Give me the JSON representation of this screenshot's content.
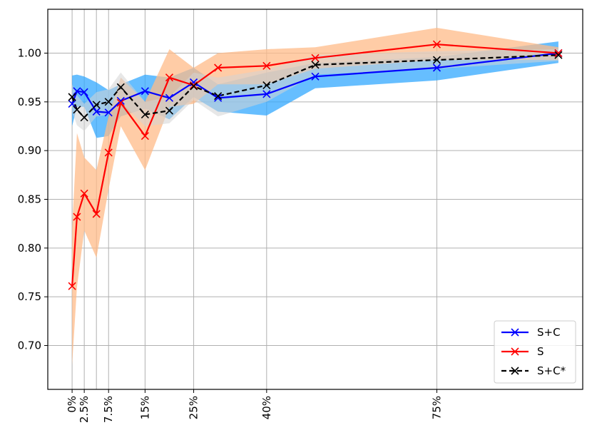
{
  "chart_data": {
    "type": "line",
    "title": "",
    "xlabel": "",
    "ylabel": "",
    "grid": true,
    "legend_position": "bottom-right",
    "xlim": [
      -5,
      105
    ],
    "ylim": [
      0.655,
      1.045
    ],
    "x_ticks": [
      {
        "value": 0,
        "label": "0%"
      },
      {
        "value": 2.5,
        "label": "2.5%"
      },
      {
        "value": 7.5,
        "label": "7.5%"
      },
      {
        "value": 15,
        "label": "15%"
      },
      {
        "value": 25,
        "label": "25%"
      },
      {
        "value": 40,
        "label": "40%"
      },
      {
        "value": 75,
        "label": "75%"
      }
    ],
    "extra_vgrid": [
      5
    ],
    "y_ticks": [
      {
        "value": 0.7,
        "label": "0.70"
      },
      {
        "value": 0.75,
        "label": "0.75"
      },
      {
        "value": 0.8,
        "label": "0.80"
      },
      {
        "value": 0.85,
        "label": "0.85"
      },
      {
        "value": 0.9,
        "label": "0.90"
      },
      {
        "value": 0.95,
        "label": "0.95"
      },
      {
        "value": 1.0,
        "label": "1.00"
      }
    ],
    "series": [
      {
        "name": "S+C",
        "color": "#0000ff",
        "band_color": "#33a8ff",
        "dashed": false,
        "points": [
          {
            "x": 0,
            "y": 0.948,
            "lo": 0.925,
            "hi": 0.977
          },
          {
            "x": 1,
            "y": 0.961,
            "lo": 0.945,
            "hi": 0.978
          },
          {
            "x": 2.5,
            "y": 0.96,
            "lo": 0.945,
            "hi": 0.976
          },
          {
            "x": 5,
            "y": 0.94,
            "lo": 0.913,
            "hi": 0.97
          },
          {
            "x": 7.5,
            "y": 0.939,
            "lo": 0.915,
            "hi": 0.962
          },
          {
            "x": 10,
            "y": 0.951,
            "lo": 0.935,
            "hi": 0.968
          },
          {
            "x": 15,
            "y": 0.961,
            "lo": 0.943,
            "hi": 0.978
          },
          {
            "x": 20,
            "y": 0.954,
            "lo": 0.932,
            "hi": 0.975
          },
          {
            "x": 25,
            "y": 0.97,
            "lo": 0.955,
            "hi": 0.985
          },
          {
            "x": 30,
            "y": 0.954,
            "lo": 0.94,
            "hi": 0.968
          },
          {
            "x": 40,
            "y": 0.958,
            "lo": 0.936,
            "hi": 0.98
          },
          {
            "x": 50,
            "y": 0.976,
            "lo": 0.964,
            "hi": 0.99
          },
          {
            "x": 75,
            "y": 0.985,
            "lo": 0.972,
            "hi": 0.996
          },
          {
            "x": 100,
            "y": 1.0,
            "lo": 0.99,
            "hi": 1.012
          }
        ]
      },
      {
        "name": "S",
        "color": "#ff0000",
        "band_color": "#ffbb88",
        "dashed": false,
        "points": [
          {
            "x": 0,
            "y": 0.761,
            "lo": 0.68,
            "hi": 0.82
          },
          {
            "x": 1,
            "y": 0.832,
            "lo": 0.76,
            "hi": 0.918
          },
          {
            "x": 2.5,
            "y": 0.856,
            "lo": 0.818,
            "hi": 0.893
          },
          {
            "x": 5,
            "y": 0.835,
            "lo": 0.79,
            "hi": 0.88
          },
          {
            "x": 7.5,
            "y": 0.898,
            "lo": 0.86,
            "hi": 0.935
          },
          {
            "x": 10,
            "y": 0.949,
            "lo": 0.925,
            "hi": 0.975
          },
          {
            "x": 15,
            "y": 0.915,
            "lo": 0.88,
            "hi": 0.95
          },
          {
            "x": 20,
            "y": 0.975,
            "lo": 0.945,
            "hi": 1.004
          },
          {
            "x": 25,
            "y": 0.967,
            "lo": 0.948,
            "hi": 0.985
          },
          {
            "x": 30,
            "y": 0.985,
            "lo": 0.968,
            "hi": 1.0
          },
          {
            "x": 40,
            "y": 0.987,
            "lo": 0.968,
            "hi": 1.004
          },
          {
            "x": 50,
            "y": 0.995,
            "lo": 0.984,
            "hi": 1.006
          },
          {
            "x": 75,
            "y": 1.009,
            "lo": 0.993,
            "hi": 1.026
          },
          {
            "x": 100,
            "y": 1.0,
            "lo": 0.993,
            "hi": 1.006
          }
        ]
      },
      {
        "name": "S+C*",
        "color": "#000000",
        "band_color": "#d3d3d3",
        "dashed": true,
        "points": [
          {
            "x": 0,
            "y": 0.955,
            "lo": 0.94,
            "hi": 0.968
          },
          {
            "x": 1,
            "y": 0.942,
            "lo": 0.926,
            "hi": 0.957
          },
          {
            "x": 2.5,
            "y": 0.934,
            "lo": 0.92,
            "hi": 0.948
          },
          {
            "x": 5,
            "y": 0.947,
            "lo": 0.935,
            "hi": 0.96
          },
          {
            "x": 7.5,
            "y": 0.95,
            "lo": 0.937,
            "hi": 0.963
          },
          {
            "x": 10,
            "y": 0.965,
            "lo": 0.95,
            "hi": 0.98
          },
          {
            "x": 15,
            "y": 0.937,
            "lo": 0.925,
            "hi": 0.95
          },
          {
            "x": 20,
            "y": 0.941,
            "lo": 0.928,
            "hi": 0.955
          },
          {
            "x": 25,
            "y": 0.966,
            "lo": 0.952,
            "hi": 0.98
          },
          {
            "x": 30,
            "y": 0.956,
            "lo": 0.935,
            "hi": 0.975
          },
          {
            "x": 40,
            "y": 0.967,
            "lo": 0.95,
            "hi": 0.983
          },
          {
            "x": 50,
            "y": 0.988,
            "lo": 0.978,
            "hi": 0.998
          },
          {
            "x": 75,
            "y": 0.993,
            "lo": 0.984,
            "hi": 1.002
          },
          {
            "x": 100,
            "y": 0.998,
            "lo": 0.992,
            "hi": 1.004
          }
        ]
      }
    ]
  }
}
